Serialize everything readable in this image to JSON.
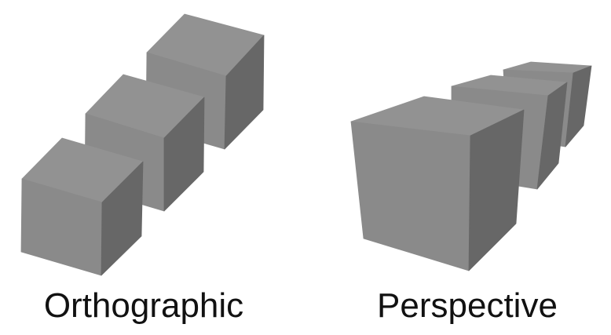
{
  "labels": {
    "orthographic": "Orthographic",
    "perspective": "Perspective"
  },
  "colors": {
    "background": "#ffffff",
    "cube_top": "#929292",
    "cube_front": "#8a8a8a",
    "cube_side": "#676767",
    "text": "#111111"
  }
}
